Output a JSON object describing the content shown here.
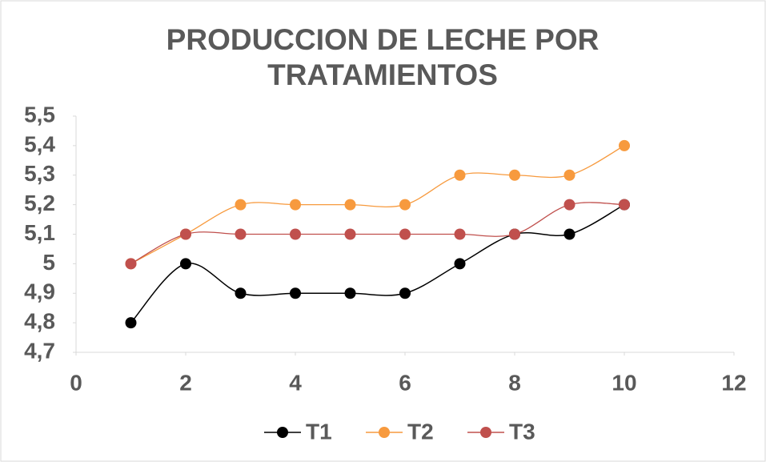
{
  "chart_data": {
    "type": "line",
    "title": "PRODUCCION DE LECHE POR TRATAMIENTOS",
    "x": [
      1,
      2,
      3,
      4,
      5,
      6,
      7,
      8,
      9,
      10
    ],
    "series": [
      {
        "name": "T1",
        "color": "#000000",
        "values": [
          4.8,
          5.0,
          4.9,
          4.9,
          4.9,
          4.9,
          5.0,
          5.1,
          5.1,
          5.2
        ]
      },
      {
        "name": "T2",
        "color": "#f79a3e",
        "values": [
          5.0,
          5.1,
          5.2,
          5.2,
          5.2,
          5.2,
          5.3,
          5.3,
          5.3,
          5.4
        ]
      },
      {
        "name": "T3",
        "color": "#c0504d",
        "values": [
          5.0,
          5.1,
          5.1,
          5.1,
          5.1,
          5.1,
          5.1,
          5.1,
          5.2,
          5.2
        ]
      }
    ],
    "xlim": [
      0,
      12
    ],
    "xticks": [
      0,
      2,
      4,
      6,
      8,
      10,
      12
    ],
    "ylim": [
      4.7,
      5.5
    ],
    "yticks": [
      {
        "value": 4.7,
        "label": "4,7"
      },
      {
        "value": 4.8,
        "label": "4,8"
      },
      {
        "value": 4.9,
        "label": "4,9"
      },
      5,
      {
        "value": 5.1,
        "label": "5,1"
      },
      {
        "value": 5.2,
        "label": "5,2"
      },
      {
        "value": 5.3,
        "label": "5,3"
      },
      {
        "value": 5.4,
        "label": "5,4"
      },
      {
        "value": 5.5,
        "label": "5,5"
      }
    ],
    "grid": false,
    "smooth": true,
    "legend": "bottom"
  }
}
